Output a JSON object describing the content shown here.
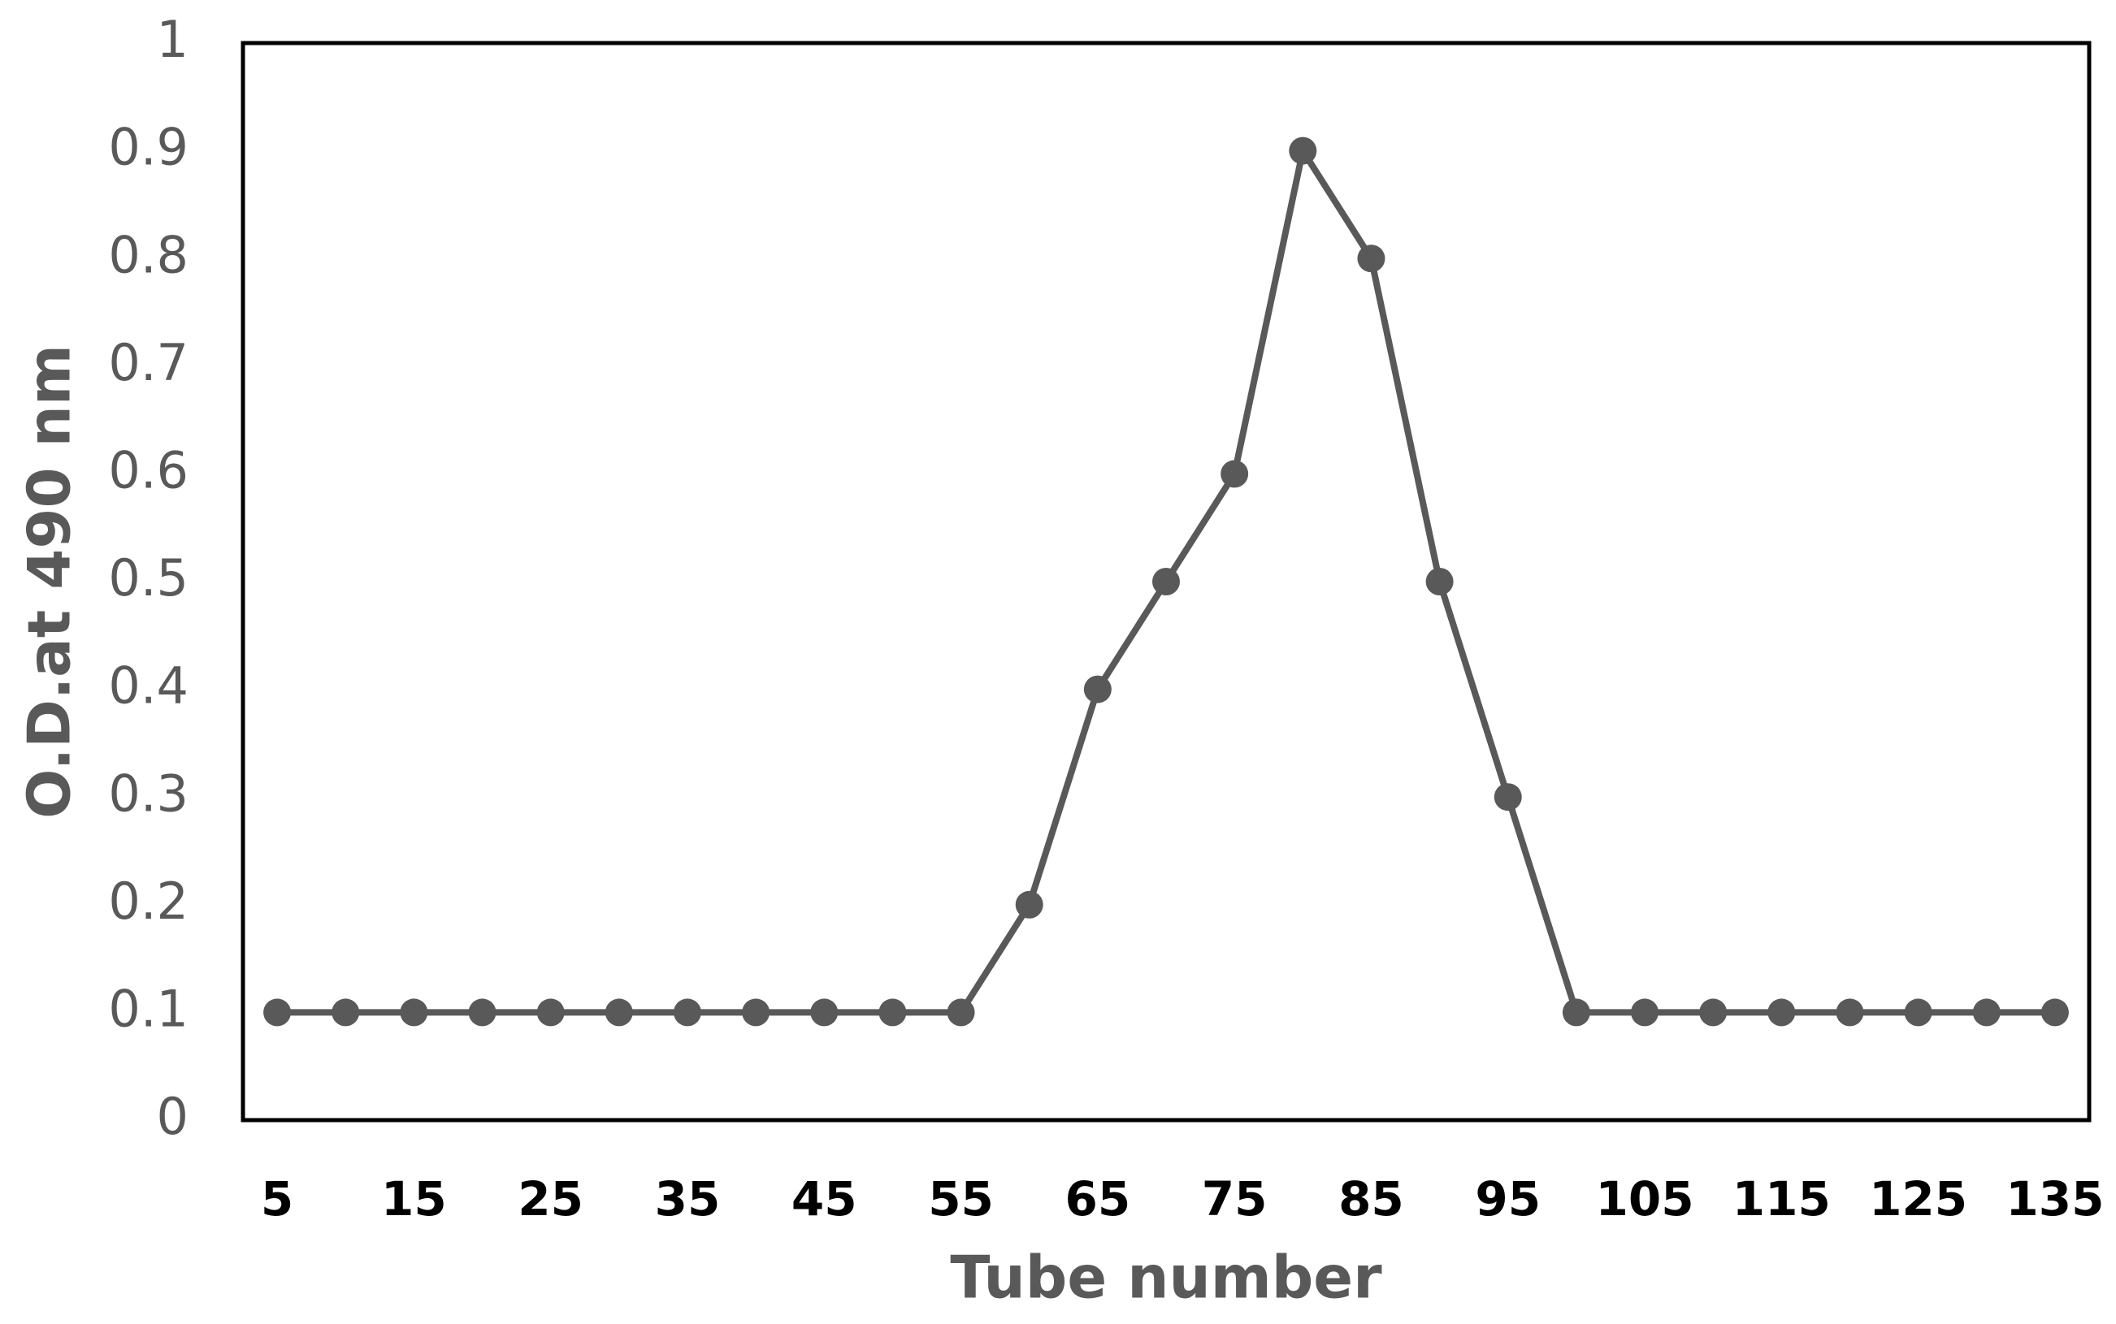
{
  "chart_data": {
    "type": "line",
    "x_label": "Tube number",
    "y_label": "O.D.at 490 nm",
    "categories": [
      5,
      null,
      15,
      null,
      25,
      null,
      35,
      null,
      45,
      null,
      55,
      null,
      65,
      null,
      75,
      null,
      85,
      null,
      95,
      null,
      105,
      null,
      115,
      null,
      125,
      null,
      135
    ],
    "values": [
      0.1,
      0.1,
      0.1,
      0.1,
      0.1,
      0.1,
      0.1,
      0.1,
      0.1,
      0.1,
      0.1,
      0.2,
      0.4,
      0.5,
      0.6,
      0.9,
      0.8,
      0.5,
      0.3,
      0.1,
      0.1,
      0.1,
      0.1,
      0.1,
      0.1,
      0.1,
      0.1
    ],
    "color": "#595959",
    "ylim": [
      0,
      1
    ],
    "yticks": [
      0,
      0.1,
      0.2,
      0.3,
      0.4,
      0.5,
      0.6,
      0.7,
      0.8,
      0.9,
      1
    ],
    "grid": false
  }
}
